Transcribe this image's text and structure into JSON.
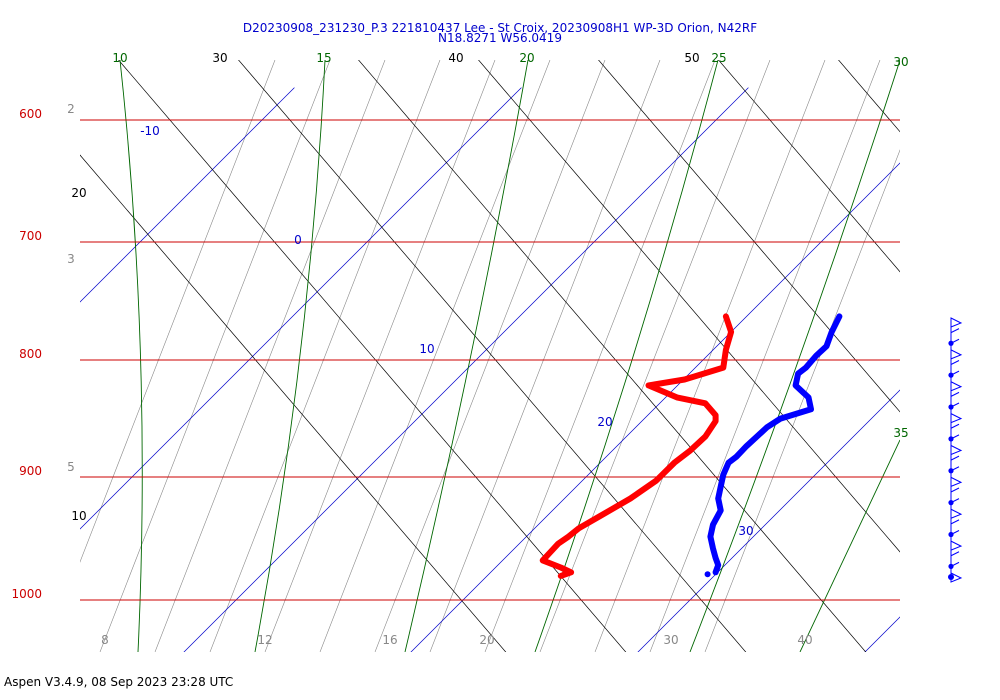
{
  "chart_data": {
    "type": "line",
    "title_line1": "D20230908_231230_P.3 221810437 Lee - St Croix, 20230908H1 WP-3D Orion, N42RF",
    "title_line2": "N18.8271 W56.0419",
    "footer": "Aspen V3.4.9, 08 Sep 2023  23:28 UTC",
    "pressure_levels": [
      600,
      700,
      800,
      900,
      1000
    ],
    "x_tick_labels": [
      "8",
      "12",
      "16",
      "20",
      "30",
      "40"
    ],
    "dry_adiabat_labels": [
      "30",
      "40",
      "50",
      "20",
      "10"
    ],
    "moist_adiabat_labels": [
      "10",
      "15",
      "20",
      "25",
      "30",
      "35"
    ],
    "isotherm_labels": [
      "-10",
      "0",
      "10",
      "20",
      "30"
    ],
    "mixing_ratio_labels": [
      "2",
      "3",
      "5"
    ],
    "colors": {
      "isobar": "#cc0000",
      "isotherm": "#0000cc",
      "dry_adiabat": "#000000",
      "moist_adiabat": "#006600",
      "mixing_ratio": "#888888",
      "temperature": "#ff0000",
      "dewpoint": "#0000ff",
      "wind": "#0000ff"
    },
    "series": [
      {
        "values": [
          [
            757,
            24.9
          ],
          [
            770,
            24.6
          ],
          [
            782,
            24.4
          ],
          [
            790,
            24.0
          ],
          [
            800,
            23.6
          ],
          [
            805,
            23.3
          ],
          [
            815,
            23.2
          ],
          [
            825,
            23.7
          ],
          [
            835,
            23.8
          ],
          [
            843,
            22.6
          ],
          [
            850,
            22.1
          ],
          [
            858,
            21.7
          ],
          [
            866,
            21.3
          ],
          [
            875,
            20.9
          ],
          [
            880,
            20.6
          ],
          [
            890,
            20.4
          ],
          [
            900,
            20.3
          ],
          [
            910,
            20.2
          ],
          [
            920,
            20.3
          ],
          [
            932,
            20.0
          ],
          [
            942,
            19.9
          ],
          [
            952,
            20.0
          ],
          [
            960,
            20.1
          ],
          [
            966,
            20.2
          ],
          [
            972,
            20.1
          ]
        ]
      },
      {
        "values": [
          [
            757,
            20.5
          ],
          [
            770,
            20.7
          ],
          [
            785,
            20.5
          ],
          [
            800,
            20.4
          ],
          [
            810,
            18.9
          ],
          [
            815,
            17.5
          ],
          [
            825,
            18.6
          ],
          [
            830,
            19.7
          ],
          [
            840,
            20.1
          ],
          [
            845,
            20.1
          ],
          [
            858,
            19.7
          ],
          [
            870,
            19.1
          ],
          [
            880,
            18.5
          ],
          [
            895,
            17.8
          ],
          [
            910,
            16.8
          ],
          [
            925,
            15.6
          ],
          [
            935,
            14.8
          ],
          [
            942,
            14.4
          ],
          [
            948,
            14.0
          ],
          [
            955,
            13.7
          ],
          [
            962,
            13.4
          ],
          [
            968,
            14.1
          ],
          [
            972,
            14.5
          ],
          [
            975,
            14.1
          ]
        ]
      }
    ],
    "wind_barb_count": 25
  }
}
